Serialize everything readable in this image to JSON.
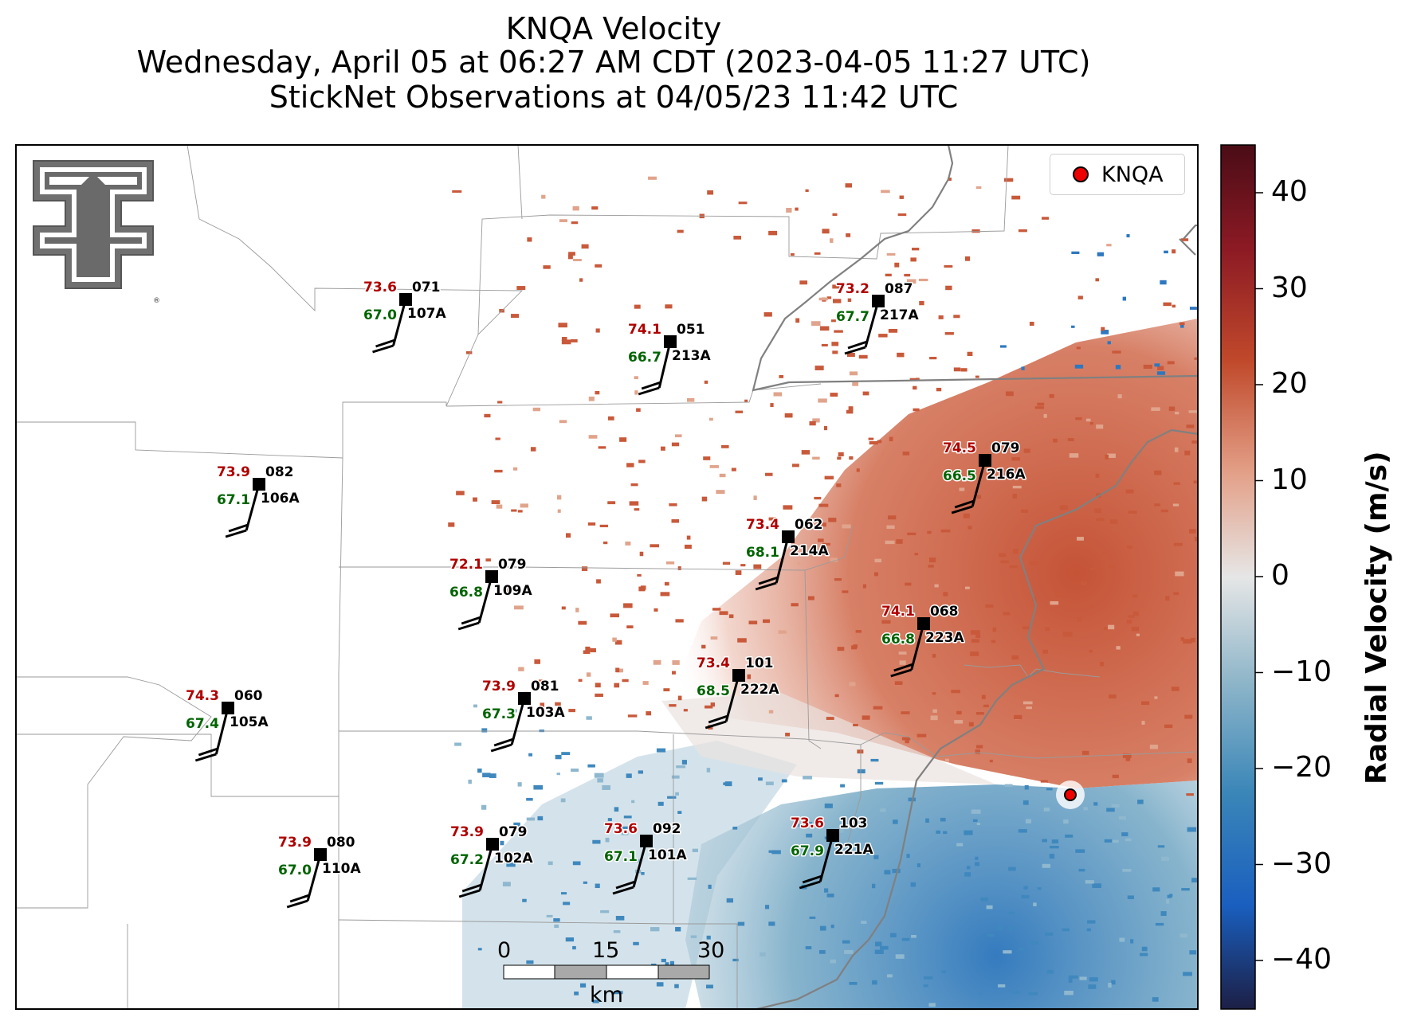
{
  "title": {
    "line1": "KNQA Velocity",
    "line2": "Wednesday, April 05 at 06:27 AM CDT (2023-04-05 11:27 UTC)",
    "line3": "StickNet Observations at 04/05/23 11:42 UTC"
  },
  "legend": {
    "label": "KNQA"
  },
  "colorbar": {
    "label": "Radial Velocity (m/s)",
    "ticks": [
      "40",
      "30",
      "20",
      "10",
      "0",
      "−10",
      "−20",
      "−30",
      "−40"
    ],
    "range": [
      -45,
      45
    ],
    "colors": [
      "#1a1f47",
      "#1a5fbf",
      "#5a9ec0",
      "#dcdcdc",
      "#e8a48a",
      "#c0492b",
      "#5a0f18"
    ]
  },
  "scale_bar": {
    "labels": [
      "0",
      "15",
      "30"
    ],
    "unit": "km"
  },
  "stations": [
    {
      "id": "107A",
      "temp": "73.6",
      "dew": "67.0",
      "dir": "071"
    },
    {
      "id": "213A",
      "temp": "74.1",
      "dew": "66.7",
      "dir": "051"
    },
    {
      "id": "217A",
      "temp": "73.2",
      "dew": "67.7",
      "dir": "087"
    },
    {
      "id": "106A",
      "temp": "73.9",
      "dew": "67.1",
      "dir": "082"
    },
    {
      "id": "216A",
      "temp": "74.5",
      "dew": "66.5",
      "dir": "079"
    },
    {
      "id": "214A",
      "temp": "73.4",
      "dew": "68.1",
      "dir": "062"
    },
    {
      "id": "109A",
      "temp": "72.1",
      "dew": "66.8",
      "dir": "079"
    },
    {
      "id": "223A",
      "temp": "74.1",
      "dew": "66.8",
      "dir": "068"
    },
    {
      "id": "222A",
      "temp": "73.4",
      "dew": "68.5",
      "dir": "101"
    },
    {
      "id": "105A",
      "temp": "74.3",
      "dew": "67.4",
      "dir": "060"
    },
    {
      "id": "103A",
      "temp": "73.9",
      "dew": "67.3",
      "dir": "081"
    },
    {
      "id": "110A",
      "temp": "73.9",
      "dew": "67.0",
      "dir": "080"
    },
    {
      "id": "102A",
      "temp": "73.9",
      "dew": "67.2",
      "dir": "079"
    },
    {
      "id": "101A",
      "temp": "73.6",
      "dew": "67.1",
      "dir": "092"
    },
    {
      "id": "221A",
      "temp": "73.6",
      "dew": "67.9",
      "dir": "103"
    }
  ],
  "logo_text": "TT"
}
